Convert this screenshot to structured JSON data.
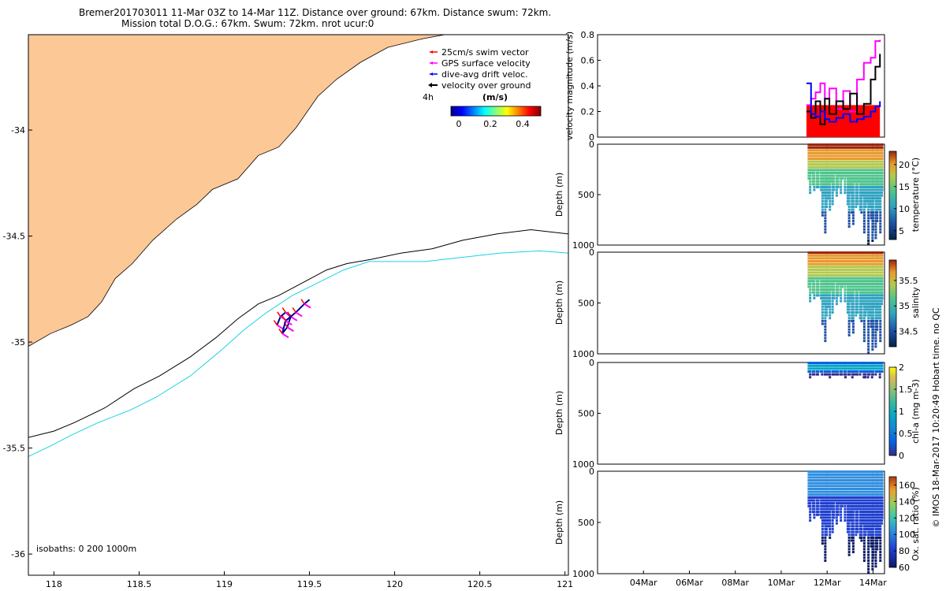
{
  "header": {
    "line1": "Bremer201703011 11-Mar 03Z to 14-Mar 11Z. Distance over ground: 67km. Distance swum: 72km.",
    "line2": "Mission total D.O.G.: 67km. Swum: 72km. nrot ucur:0"
  },
  "colors": {
    "land": "#fcc896",
    "isobath_200": "#000000",
    "isobath_1000": "#19d2e6",
    "swim_vector": "#ff0000",
    "gps_surface_velocity": "#ff00ff",
    "dive_avg_drift": "#0000ff",
    "velocity_over_ground": "#000000"
  },
  "chart_data": [
    {
      "type": "map",
      "xlim": [
        117.85,
        121.02
      ],
      "ylim": [
        -36.1,
        -33.55
      ],
      "xticks": [
        "118",
        "118.5",
        "119",
        "119.5",
        "120",
        "120.5",
        "121"
      ],
      "yticks": [
        "-34",
        "-34.5",
        "-35",
        "-35.5",
        "-36"
      ],
      "legend": {
        "placement": "top-right",
        "entries": [
          "25cm/s swim vector",
          "GPS surface velocity",
          "dive-avg drift veloc.",
          "velocity over ground"
        ]
      },
      "colorbar": {
        "title": "(m/s)",
        "ticks": [
          "0",
          "0.2",
          "0.4"
        ],
        "range": [
          0,
          0.5
        ]
      },
      "time_step_label": "4h",
      "isobath_note": "isobaths: 0   200  1000m",
      "coastline": [
        [
          117.85,
          -35.02
        ],
        [
          117.98,
          -34.96
        ],
        [
          118.1,
          -34.92
        ],
        [
          118.2,
          -34.88
        ],
        [
          118.28,
          -34.81
        ],
        [
          118.36,
          -34.7
        ],
        [
          118.46,
          -34.63
        ],
        [
          118.58,
          -34.52
        ],
        [
          118.72,
          -34.42
        ],
        [
          118.84,
          -34.35
        ],
        [
          118.93,
          -34.28
        ],
        [
          119.08,
          -34.23
        ],
        [
          119.2,
          -34.12
        ],
        [
          119.32,
          -34.08
        ],
        [
          119.42,
          -33.99
        ],
        [
          119.55,
          -33.84
        ],
        [
          119.66,
          -33.76
        ],
        [
          119.8,
          -33.68
        ],
        [
          119.96,
          -33.61
        ],
        [
          120.16,
          -33.57
        ],
        [
          120.36,
          -33.54
        ]
      ],
      "isobath_200": [
        [
          117.85,
          -35.45
        ],
        [
          118.0,
          -35.42
        ],
        [
          118.12,
          -35.38
        ],
        [
          118.3,
          -35.31
        ],
        [
          118.47,
          -35.22
        ],
        [
          118.62,
          -35.16
        ],
        [
          118.8,
          -35.07
        ],
        [
          118.95,
          -34.98
        ],
        [
          119.08,
          -34.89
        ],
        [
          119.2,
          -34.82
        ],
        [
          119.32,
          -34.78
        ],
        [
          119.46,
          -34.72
        ],
        [
          119.6,
          -34.66
        ],
        [
          119.72,
          -34.63
        ],
        [
          119.86,
          -34.61
        ],
        [
          120.04,
          -34.58
        ],
        [
          120.22,
          -34.56
        ],
        [
          120.4,
          -34.52
        ],
        [
          120.6,
          -34.49
        ],
        [
          120.8,
          -34.47
        ],
        [
          121.02,
          -34.49
        ]
      ],
      "isobath_1000": [
        [
          117.85,
          -35.54
        ],
        [
          117.98,
          -35.49
        ],
        [
          118.1,
          -35.44
        ],
        [
          118.26,
          -35.38
        ],
        [
          118.45,
          -35.32
        ],
        [
          118.6,
          -35.26
        ],
        [
          118.8,
          -35.16
        ],
        [
          118.98,
          -35.04
        ],
        [
          119.12,
          -34.94
        ],
        [
          119.25,
          -34.86
        ],
        [
          119.4,
          -34.78
        ],
        [
          119.55,
          -34.72
        ],
        [
          119.7,
          -34.66
        ],
        [
          119.85,
          -34.62
        ],
        [
          120.0,
          -34.62
        ],
        [
          120.18,
          -34.62
        ],
        [
          120.4,
          -34.6
        ],
        [
          120.62,
          -34.58
        ],
        [
          120.85,
          -34.57
        ],
        [
          121.02,
          -34.58
        ]
      ],
      "track": [
        [
          119.31,
          -34.92
        ],
        [
          119.33,
          -34.88
        ],
        [
          119.36,
          -34.86
        ],
        [
          119.39,
          -34.88
        ],
        [
          119.37,
          -34.93
        ],
        [
          119.34,
          -34.96
        ],
        [
          119.36,
          -34.9
        ],
        [
          119.42,
          -34.86
        ],
        [
          119.47,
          -34.82
        ],
        [
          119.5,
          -34.8
        ]
      ]
    },
    {
      "type": "line",
      "ylabel": "velocity magnitude (m/s)",
      "ylim": [
        0,
        0.8
      ],
      "yticks": [
        "0",
        "0.2",
        "0.4",
        "0.6",
        "0.8"
      ],
      "x_range_days": [
        2.0,
        14.5
      ],
      "series": [
        {
          "color": "#ff00ff",
          "x": [
            11.1,
            11.3,
            11.5,
            11.7,
            11.9,
            12.1,
            12.4,
            12.7,
            13.0,
            13.3,
            13.6,
            13.9,
            14.1,
            14.3
          ],
          "y": [
            0.25,
            0.3,
            0.35,
            0.42,
            0.3,
            0.38,
            0.22,
            0.36,
            0.2,
            0.45,
            0.58,
            0.62,
            0.75,
            0.76
          ]
        },
        {
          "color": "#000000",
          "x": [
            11.1,
            11.3,
            11.5,
            11.7,
            11.9,
            12.1,
            12.4,
            12.7,
            13.0,
            13.3,
            13.6,
            13.9,
            14.1,
            14.3
          ],
          "y": [
            0.2,
            0.15,
            0.28,
            0.1,
            0.3,
            0.18,
            0.28,
            0.22,
            0.34,
            0.18,
            0.26,
            0.45,
            0.55,
            0.65
          ]
        },
        {
          "color": "#0000ff",
          "x": [
            11.1,
            11.3,
            11.5,
            11.7,
            11.9,
            12.1,
            12.4,
            12.7,
            13.0,
            13.3,
            13.6,
            13.9,
            14.1,
            14.3
          ],
          "y": [
            0.42,
            0.18,
            0.16,
            0.2,
            0.14,
            0.12,
            0.15,
            0.18,
            0.12,
            0.14,
            0.16,
            0.2,
            0.24,
            0.28
          ]
        },
        {
          "color": "#ff0000",
          "x": [
            11.1,
            14.3
          ],
          "y": [
            0.25,
            0.25
          ]
        }
      ]
    },
    {
      "type": "scatter",
      "ylabel": "Depth (m)",
      "colorbar_label": "temperature (°C)",
      "ylim": [
        0,
        1000
      ],
      "yticks": [
        "0",
        "500",
        "1000"
      ],
      "colorbar_ticks": [
        "5",
        "10",
        "15",
        "20"
      ],
      "color_range": [
        3,
        23
      ],
      "dive_max_depths": [
        [
          11.2,
          500
        ],
        [
          11.5,
          500
        ],
        [
          11.8,
          900
        ],
        [
          12.0,
          700
        ],
        [
          12.3,
          550
        ],
        [
          12.6,
          500
        ],
        [
          12.9,
          850
        ],
        [
          13.2,
          700
        ],
        [
          13.5,
          900
        ],
        [
          13.8,
          1000
        ],
        [
          14.0,
          1000
        ],
        [
          14.2,
          900
        ],
        [
          14.4,
          850
        ]
      ],
      "profile_values": [
        [
          0,
          22
        ],
        [
          100,
          20
        ],
        [
          200,
          16
        ],
        [
          300,
          13
        ],
        [
          500,
          10
        ],
        [
          800,
          6
        ],
        [
          1000,
          4
        ]
      ]
    },
    {
      "type": "scatter",
      "ylabel": "Depth (m)",
      "colorbar_label": "salinity",
      "ylim": [
        0,
        1000
      ],
      "yticks": [
        "0",
        "500",
        "1000"
      ],
      "colorbar_ticks": [
        "34.5",
        "35",
        "35.5"
      ],
      "color_range": [
        34.2,
        35.9
      ],
      "dive_max_depths": [
        [
          11.2,
          500
        ],
        [
          11.5,
          500
        ],
        [
          11.8,
          900
        ],
        [
          12.0,
          700
        ],
        [
          12.3,
          550
        ],
        [
          12.6,
          500
        ],
        [
          12.9,
          850
        ],
        [
          13.2,
          700
        ],
        [
          13.5,
          900
        ],
        [
          13.8,
          1000
        ],
        [
          14.0,
          1000
        ],
        [
          14.2,
          900
        ],
        [
          14.4,
          850
        ]
      ],
      "profile_values": [
        [
          0,
          35.8
        ],
        [
          100,
          35.6
        ],
        [
          200,
          35.3
        ],
        [
          350,
          35.0
        ],
        [
          500,
          34.8
        ],
        [
          800,
          34.5
        ],
        [
          1000,
          34.4
        ]
      ]
    },
    {
      "type": "scatter",
      "ylabel": "Depth (m)",
      "colorbar_label": "chl-a (mg m-3)",
      "ylim": [
        0,
        1000
      ],
      "yticks": [
        "0",
        "500",
        "1000"
      ],
      "colorbar_ticks": [
        "0",
        "0.5",
        "1",
        "1.5",
        "2"
      ],
      "color_range": [
        0,
        2
      ],
      "dive_max_depths": [
        [
          11.2,
          150
        ],
        [
          11.6,
          140
        ],
        [
          12.0,
          160
        ],
        [
          12.4,
          150
        ],
        [
          12.8,
          160
        ],
        [
          13.2,
          140
        ],
        [
          13.6,
          170
        ],
        [
          14.0,
          150
        ],
        [
          14.4,
          160
        ]
      ],
      "profile_values": [
        [
          0,
          0.3
        ],
        [
          40,
          1.0
        ],
        [
          70,
          0.6
        ],
        [
          120,
          0.1
        ],
        [
          200,
          0.0
        ]
      ]
    },
    {
      "type": "scatter",
      "ylabel": "Depth (m)",
      "colorbar_label": "Ox. sat. ratio (%)",
      "ylim": [
        0,
        1000
      ],
      "yticks": [
        "0",
        "500",
        "1000"
      ],
      "colorbar_ticks": [
        "60",
        "80",
        "100",
        "120",
        "140",
        "160"
      ],
      "color_range": [
        60,
        170
      ],
      "xticks": [
        "04Mar",
        "06Mar",
        "08Mar",
        "10Mar",
        "12Mar",
        "14Mar"
      ],
      "dive_max_depths": [
        [
          11.2,
          500
        ],
        [
          11.5,
          500
        ],
        [
          11.8,
          900
        ],
        [
          12.0,
          700
        ],
        [
          12.3,
          550
        ],
        [
          12.6,
          500
        ],
        [
          12.9,
          850
        ],
        [
          13.2,
          700
        ],
        [
          13.5,
          900
        ],
        [
          13.8,
          1000
        ],
        [
          14.0,
          1000
        ],
        [
          14.2,
          900
        ],
        [
          14.4,
          850
        ]
      ],
      "profile_values": [
        [
          0,
          95
        ],
        [
          200,
          90
        ],
        [
          400,
          80
        ],
        [
          600,
          70
        ],
        [
          1000,
          62
        ]
      ]
    }
  ],
  "credit": "© IMOS 18-Mar-2017 10:20:49 Hobart time. no QC"
}
